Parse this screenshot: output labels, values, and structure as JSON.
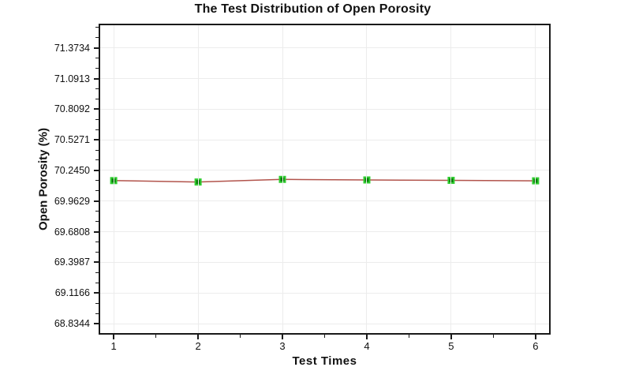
{
  "chart_data": {
    "type": "line",
    "title": "The Test Distribution of Open Porosity",
    "xlabel": "Test Times",
    "ylabel": "Open Porosity (%)",
    "x": [
      1,
      2,
      3,
      4,
      5,
      6
    ],
    "xtick_labels": [
      "1",
      "2",
      "3",
      "4",
      "5",
      "6"
    ],
    "series": [
      {
        "name": "Open Porosity",
        "values": [
          70.152,
          70.139,
          70.163,
          70.158,
          70.154,
          70.15
        ]
      }
    ],
    "yticks": [
      68.8344,
      69.1166,
      69.3987,
      69.6808,
      69.9629,
      70.245,
      70.5271,
      70.8092,
      71.0913,
      71.3734
    ],
    "ytick_labels": [
      "68.8344",
      "69.1166",
      "69.3987",
      "69.6808",
      "69.9629",
      "70.2450",
      "70.5271",
      "70.8092",
      "71.0913",
      "71.3734"
    ],
    "ylim": [
      68.748,
      71.582
    ],
    "xlim": [
      0.84,
      6.16
    ],
    "grid": true,
    "legend": "none",
    "minor_ticks": {
      "y": 2,
      "x": 1
    },
    "marker": "square",
    "colors": {
      "line": "#b2544c",
      "marker_fill": "#077d07",
      "marker_border": "#33cd33",
      "grid": "#ececec",
      "axis": "#1a1a1a",
      "text": "#111111"
    }
  }
}
